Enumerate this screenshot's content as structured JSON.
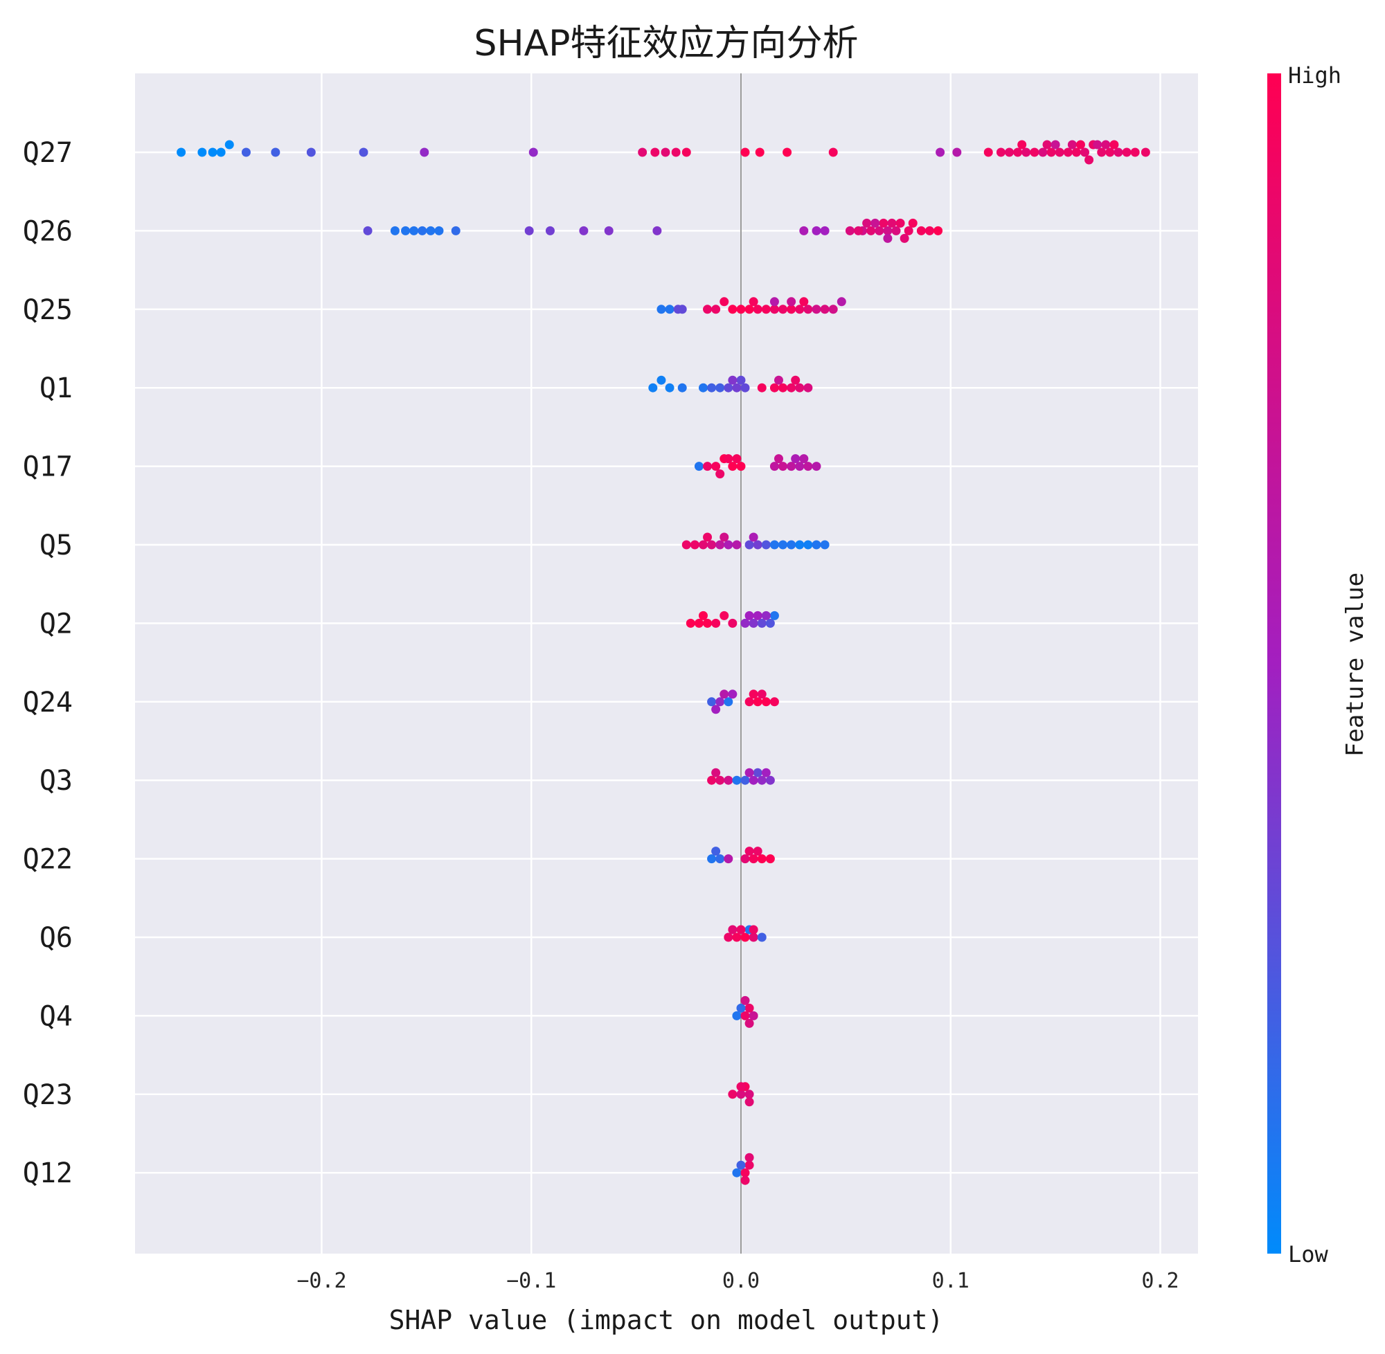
{
  "chart_data": {
    "type": "scatter",
    "subtype": "shap-beeswarm-summary",
    "title": "SHAP特征效应方向分析",
    "xlabel": "SHAP value (impact on model output)",
    "xlim": [
      -0.289,
      0.218
    ],
    "xticks": [
      -0.2,
      -0.1,
      0.0,
      0.1,
      0.2
    ],
    "xtick_labels": [
      "−0.2",
      "−0.1",
      "0.0",
      "0.1",
      "0.2"
    ],
    "grid": true,
    "background": "#eaeaf2",
    "colorbar": {
      "label": "Feature value",
      "high_label": "High",
      "low_label": "Low",
      "low_color": "#008bfb",
      "mid_color": "#a31fc0",
      "high_color": "#ff0052"
    },
    "features": [
      {
        "name": "Q27",
        "points": [
          [
            -0.267,
            0
          ],
          [
            -0.257,
            0
          ],
          [
            -0.252,
            0
          ],
          [
            -0.248,
            0
          ],
          [
            -0.244,
            0
          ],
          [
            -0.236,
            0.2
          ],
          [
            -0.222,
            0.2
          ],
          [
            -0.205,
            0.25
          ],
          [
            -0.18,
            0.25
          ],
          [
            -0.151,
            0.45
          ],
          [
            -0.099,
            0.45
          ],
          [
            -0.047,
            0.85
          ],
          [
            -0.041,
            0.9
          ],
          [
            -0.036,
            0.85
          ],
          [
            -0.031,
            0.9
          ],
          [
            -0.026,
            0.95
          ],
          [
            0.002,
            1
          ],
          [
            0.009,
            1
          ],
          [
            0.022,
            1
          ],
          [
            0.044,
            0.95
          ],
          [
            0.095,
            0.55
          ],
          [
            0.103,
            0.6
          ],
          [
            0.118,
            0.95
          ],
          [
            0.124,
            0.9
          ],
          [
            0.128,
            0.88
          ],
          [
            0.132,
            0.9
          ],
          [
            0.136,
            0.85
          ],
          [
            0.14,
            0.92
          ],
          [
            0.144,
            0.8
          ],
          [
            0.148,
            0.9
          ],
          [
            0.152,
            0.88
          ],
          [
            0.156,
            0.9
          ],
          [
            0.16,
            0.92
          ],
          [
            0.164,
            0.85
          ],
          [
            0.168,
            0.9
          ],
          [
            0.172,
            0.88
          ],
          [
            0.176,
            0.9
          ],
          [
            0.18,
            0.85
          ],
          [
            0.184,
            0.9
          ],
          [
            0.188,
            0.92
          ],
          [
            0.193,
            0.9
          ],
          [
            0.17,
            0.75
          ],
          [
            0.158,
            0.8
          ],
          [
            0.146,
            0.85
          ],
          [
            0.134,
            0.95
          ],
          [
            0.162,
            0.95
          ],
          [
            0.174,
            0.8
          ],
          [
            0.15,
            0.7
          ],
          [
            0.178,
            0.95
          ],
          [
            0.166,
            0.88
          ]
        ]
      },
      {
        "name": "Q26",
        "points": [
          [
            -0.178,
            0.3
          ],
          [
            -0.165,
            0.1
          ],
          [
            -0.16,
            0.1
          ],
          [
            -0.156,
            0.1
          ],
          [
            -0.152,
            0.12
          ],
          [
            -0.148,
            0.1
          ],
          [
            -0.144,
            0.1
          ],
          [
            -0.136,
            0.15
          ],
          [
            -0.101,
            0.35
          ],
          [
            -0.091,
            0.35
          ],
          [
            -0.075,
            0.4
          ],
          [
            -0.063,
            0.4
          ],
          [
            -0.04,
            0.4
          ],
          [
            0.03,
            0.55
          ],
          [
            0.036,
            0.5
          ],
          [
            0.04,
            0.5
          ],
          [
            0.052,
            0.8
          ],
          [
            0.058,
            0.75
          ],
          [
            0.062,
            0.85
          ],
          [
            0.066,
            0.8
          ],
          [
            0.068,
            0.9
          ],
          [
            0.07,
            0.75
          ],
          [
            0.072,
            0.85
          ],
          [
            0.074,
            0.8
          ],
          [
            0.076,
            0.9
          ],
          [
            0.078,
            0.85
          ],
          [
            0.08,
            0.9
          ],
          [
            0.082,
            0.95
          ],
          [
            0.086,
            0.95
          ],
          [
            0.09,
            0.95
          ],
          [
            0.094,
            1
          ],
          [
            0.064,
            0.7
          ],
          [
            0.06,
            0.8
          ],
          [
            0.056,
            0.85
          ],
          [
            0.07,
            0.65
          ]
        ]
      },
      {
        "name": "Q25",
        "points": [
          [
            -0.038,
            0.1
          ],
          [
            -0.034,
            0.1
          ],
          [
            -0.03,
            0.3
          ],
          [
            -0.028,
            0.3
          ],
          [
            -0.016,
            0.9
          ],
          [
            -0.012,
            0.9
          ],
          [
            -0.008,
            0.95
          ],
          [
            -0.004,
            1
          ],
          [
            0.0,
            1
          ],
          [
            0.004,
            1
          ],
          [
            0.008,
            0.95
          ],
          [
            0.012,
            0.95
          ],
          [
            0.016,
            0.9
          ],
          [
            0.02,
            0.9
          ],
          [
            0.024,
            0.95
          ],
          [
            0.028,
            0.9
          ],
          [
            0.032,
            0.85
          ],
          [
            0.036,
            0.75
          ],
          [
            0.04,
            0.8
          ],
          [
            0.044,
            0.75
          ],
          [
            0.048,
            0.6
          ],
          [
            0.024,
            0.7
          ],
          [
            0.03,
            0.95
          ],
          [
            0.016,
            0.6
          ],
          [
            0.006,
            0.95
          ]
        ]
      },
      {
        "name": "Q1",
        "points": [
          [
            -0.042,
            0.05
          ],
          [
            -0.038,
            0.05
          ],
          [
            -0.034,
            0.05
          ],
          [
            -0.028,
            0.1
          ],
          [
            -0.018,
            0.1
          ],
          [
            -0.014,
            0.2
          ],
          [
            -0.01,
            0.2
          ],
          [
            -0.006,
            0.3
          ],
          [
            -0.002,
            0.35
          ],
          [
            0.0,
            0.3
          ],
          [
            0.002,
            0.3
          ],
          [
            -0.004,
            0.4
          ],
          [
            0.01,
            0.95
          ],
          [
            0.016,
            0.95
          ],
          [
            0.02,
            0.95
          ],
          [
            0.024,
            0.9
          ],
          [
            0.028,
            0.85
          ],
          [
            0.032,
            0.8
          ],
          [
            0.018,
            0.7
          ],
          [
            0.026,
            0.9
          ]
        ]
      },
      {
        "name": "Q17",
        "points": [
          [
            -0.02,
            0.1
          ],
          [
            -0.016,
            0.9
          ],
          [
            -0.012,
            0.95
          ],
          [
            -0.008,
            1
          ],
          [
            -0.004,
            1
          ],
          [
            0.0,
            1
          ],
          [
            -0.006,
            0.95
          ],
          [
            -0.002,
            0.95
          ],
          [
            -0.01,
            0.9
          ],
          [
            0.016,
            0.65
          ],
          [
            0.02,
            0.7
          ],
          [
            0.024,
            0.65
          ],
          [
            0.028,
            0.6
          ],
          [
            0.032,
            0.65
          ],
          [
            0.036,
            0.6
          ],
          [
            0.026,
            0.55
          ],
          [
            0.03,
            0.6
          ],
          [
            0.018,
            0.7
          ]
        ]
      },
      {
        "name": "Q5",
        "points": [
          [
            -0.026,
            0.9
          ],
          [
            -0.022,
            0.9
          ],
          [
            -0.018,
            0.85
          ],
          [
            -0.014,
            0.8
          ],
          [
            -0.01,
            0.65
          ],
          [
            -0.006,
            0.55
          ],
          [
            -0.002,
            0.6
          ],
          [
            0.004,
            0.3
          ],
          [
            0.008,
            0.35
          ],
          [
            0.012,
            0.25
          ],
          [
            0.016,
            0.1
          ],
          [
            0.02,
            0.1
          ],
          [
            0.024,
            0.1
          ],
          [
            0.028,
            0.05
          ],
          [
            0.032,
            0.05
          ],
          [
            0.036,
            0.1
          ],
          [
            0.04,
            0.1
          ],
          [
            0.006,
            0.55
          ],
          [
            -0.016,
            0.9
          ],
          [
            -0.008,
            0.75
          ]
        ]
      },
      {
        "name": "Q2",
        "points": [
          [
            -0.024,
            1
          ],
          [
            -0.02,
            1
          ],
          [
            -0.016,
            1
          ],
          [
            -0.012,
            0.95
          ],
          [
            -0.008,
            0.95
          ],
          [
            -0.004,
            0.9
          ],
          [
            -0.018,
            1
          ],
          [
            0.002,
            0.45
          ],
          [
            0.006,
            0.4
          ],
          [
            0.01,
            0.3
          ],
          [
            0.014,
            0.25
          ],
          [
            0.016,
            0.1
          ],
          [
            0.008,
            0.5
          ],
          [
            0.012,
            0.45
          ],
          [
            0.004,
            0.5
          ]
        ]
      },
      {
        "name": "Q24",
        "points": [
          [
            -0.014,
            0.2
          ],
          [
            -0.01,
            0.45
          ],
          [
            -0.006,
            0.1
          ],
          [
            -0.004,
            0.5
          ],
          [
            -0.008,
            0.6
          ],
          [
            0.004,
            0.95
          ],
          [
            0.008,
            1
          ],
          [
            0.012,
            1
          ],
          [
            0.016,
            0.95
          ],
          [
            0.006,
            0.95
          ],
          [
            0.01,
            0.9
          ],
          [
            -0.012,
            0.5
          ]
        ]
      },
      {
        "name": "Q3",
        "points": [
          [
            -0.014,
            0.9
          ],
          [
            -0.01,
            0.85
          ],
          [
            -0.006,
            0.75
          ],
          [
            -0.002,
            0.1
          ],
          [
            0.002,
            0.2
          ],
          [
            0.006,
            0.5
          ],
          [
            0.01,
            0.45
          ],
          [
            0.014,
            0.4
          ],
          [
            0.008,
            0.3
          ],
          [
            -0.012,
            0.8
          ],
          [
            0.004,
            0.55
          ],
          [
            0.012,
            0.5
          ]
        ]
      },
      {
        "name": "Q22",
        "points": [
          [
            -0.014,
            0.1
          ],
          [
            -0.01,
            0.15
          ],
          [
            -0.006,
            0.6
          ],
          [
            0.002,
            0.85
          ],
          [
            0.006,
            0.95
          ],
          [
            0.01,
            1
          ],
          [
            0.014,
            1
          ],
          [
            0.004,
            0.9
          ],
          [
            0.008,
            0.9
          ],
          [
            -0.012,
            0.2
          ]
        ]
      },
      {
        "name": "Q6",
        "points": [
          [
            -0.006,
            0.9
          ],
          [
            -0.002,
            0.95
          ],
          [
            0.002,
            1
          ],
          [
            0.006,
            0.85
          ],
          [
            0.01,
            0.2
          ],
          [
            0.004,
            0.1
          ],
          [
            0.0,
            0.9
          ],
          [
            0.006,
            0.9
          ],
          [
            -0.004,
            0.85
          ]
        ]
      },
      {
        "name": "Q4",
        "points": [
          [
            -0.002,
            0.1
          ],
          [
            0.002,
            0.9
          ],
          [
            0.004,
            0.9
          ],
          [
            0.006,
            0.7
          ],
          [
            0.0,
            0.15
          ],
          [
            0.004,
            0.8
          ],
          [
            0.002,
            0.75
          ]
        ]
      },
      {
        "name": "Q23",
        "points": [
          [
            -0.004,
            0.9
          ],
          [
            0.0,
            0.8
          ],
          [
            0.004,
            0.8
          ],
          [
            0.002,
            0.95
          ],
          [
            0.0,
            0.9
          ],
          [
            0.004,
            0.85
          ]
        ]
      },
      {
        "name": "Q12",
        "points": [
          [
            -0.002,
            0.1
          ],
          [
            0.002,
            0.95
          ],
          [
            0.004,
            0.9
          ],
          [
            0.0,
            0.2
          ],
          [
            0.002,
            0.9
          ],
          [
            0.004,
            0.85
          ]
        ]
      }
    ]
  }
}
